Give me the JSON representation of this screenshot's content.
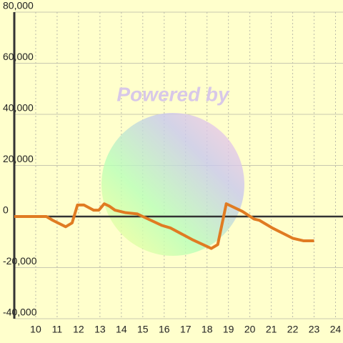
{
  "chart_data": {
    "type": "line",
    "watermark": "Powered by",
    "x": [
      9.0,
      10.5,
      10.8,
      11.4,
      11.7,
      11.95,
      12.25,
      12.7,
      12.95,
      13.2,
      13.45,
      13.7,
      14.2,
      14.75,
      15.0,
      15.9,
      16.3,
      17.3,
      18.2,
      18.5,
      18.9,
      19.65,
      20.2,
      20.45,
      21.05,
      22.0,
      22.5,
      23.0
    ],
    "series": [
      {
        "color": "#e07b22",
        "values": [
          0,
          0,
          -1500,
          -4000,
          -2500,
          4500,
          4500,
          2500,
          2500,
          5000,
          4000,
          2500,
          1500,
          1000,
          0,
          -3500,
          -4500,
          -9000,
          -12500,
          -11000,
          5000,
          2000,
          -1000,
          -1500,
          -4500,
          -8500,
          -9500,
          -9500
        ]
      }
    ],
    "xlim": [
      9,
      24.35
    ],
    "xticks": [
      10,
      11,
      12,
      13,
      14,
      15,
      16,
      17,
      18,
      19,
      20,
      21,
      22,
      23,
      24
    ],
    "ylim": [
      -40000,
      80000
    ],
    "yticks": [
      {
        "value": -40000,
        "label": "-40,000"
      },
      {
        "value": -20000,
        "label": "-20,000"
      },
      0,
      {
        "value": 20000,
        "label": "20,000"
      },
      {
        "value": 40000,
        "label": "40,000"
      },
      {
        "value": 60000,
        "label": "60,000"
      },
      {
        "value": 80000,
        "label": "80,000"
      }
    ],
    "grid": true
  }
}
